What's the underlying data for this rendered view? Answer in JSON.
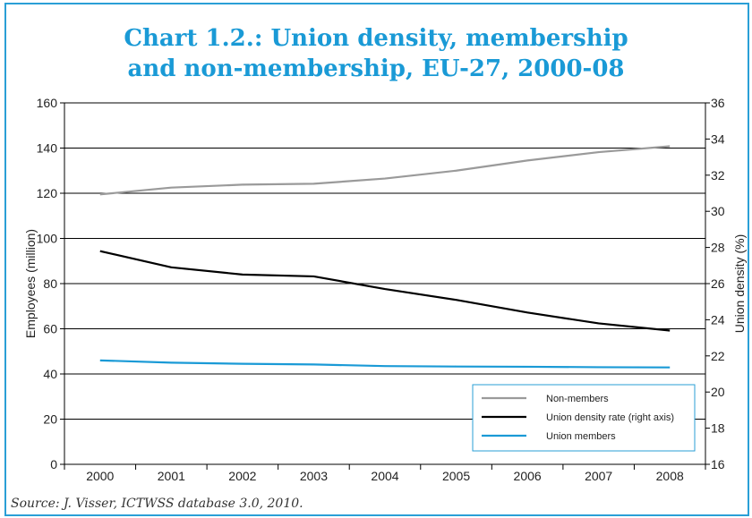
{
  "colors": {
    "border": "#2a9fd6",
    "title": "#1a9ad6"
  },
  "chart_data": {
    "type": "line",
    "title_line1": "Chart 1.2.: Union density, membership",
    "title_line2": "and non-membership, EU-27, 2000-08",
    "ylabel_left": "Employees (million)",
    "ylabel_right": "Union density (%)",
    "ylim_left": [
      0,
      160
    ],
    "ylim_right": [
      16,
      36
    ],
    "yticks_left": [
      "0",
      "20",
      "40",
      "60",
      "80",
      "100",
      "120",
      "140",
      "160"
    ],
    "yticks_right": [
      "16",
      "18",
      "20",
      "22",
      "24",
      "26",
      "28",
      "30",
      "32",
      "34",
      "36"
    ],
    "categories": [
      "2000",
      "2001",
      "2002",
      "2003",
      "2004",
      "2005",
      "2006",
      "2007",
      "2008"
    ],
    "grid": "horizontal",
    "legend_position": "bottom-right",
    "series": [
      {
        "name": "Non-members",
        "axis": "left",
        "color": "#9a9a9a",
        "values": [
          119.5,
          122.5,
          123.8,
          124.2,
          126.5,
          130,
          134.5,
          138.2,
          140.8
        ]
      },
      {
        "name": "Union density rate (right axis)",
        "axis": "right",
        "color": "#000000",
        "values": [
          27.8,
          26.9,
          26.5,
          26.4,
          25.7,
          25.1,
          24.4,
          23.8,
          23.4
        ]
      },
      {
        "name": "Union members",
        "axis": "left",
        "color": "#1a9ad6",
        "values": [
          46,
          45,
          44.5,
          44.2,
          43.5,
          43.3,
          43.2,
          43,
          42.9
        ]
      }
    ],
    "source": "Source: J. Visser, ICTWSS database 3.0, 2010."
  }
}
